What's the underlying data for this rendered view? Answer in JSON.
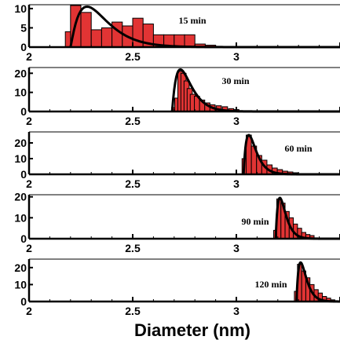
{
  "figure": {
    "xlabel": "Diameter (nm)",
    "colors": {
      "bar_fill": "#e23434",
      "bar_stroke": "#000000",
      "fit_line": "#000000"
    }
  },
  "chart_data": [
    {
      "type": "bar",
      "label": "15 min",
      "xlim": [
        2,
        3.5
      ],
      "ylim": [
        0,
        11
      ],
      "xticks": [
        "2",
        "2.5",
        "3"
      ],
      "yticks": [
        "0",
        "5",
        "10"
      ],
      "bin_width": 0.05,
      "bins": [
        [
          2.2,
          4
        ],
        [
          2.225,
          10.8
        ],
        [
          2.275,
          9
        ],
        [
          2.325,
          4.5
        ],
        [
          2.375,
          5
        ],
        [
          2.425,
          6.5
        ],
        [
          2.475,
          5.5
        ],
        [
          2.525,
          7.5
        ],
        [
          2.575,
          6
        ],
        [
          2.625,
          3.2
        ],
        [
          2.675,
          3.2
        ],
        [
          2.725,
          3.2
        ],
        [
          2.775,
          3.2
        ],
        [
          2.825,
          0.8
        ],
        [
          2.875,
          0.5
        ]
      ],
      "fit": {
        "mode": 2.28,
        "sigma": 0.3,
        "peak": 10.5,
        "start": 2.2
      }
    },
    {
      "type": "bar",
      "label": "30 min",
      "xlim": [
        2,
        3.5
      ],
      "ylim": [
        0,
        23
      ],
      "xticks": [
        "2",
        "2.5",
        "3"
      ],
      "yticks": [
        "0",
        "10",
        "20"
      ],
      "bin_width": 0.025,
      "bins": [
        [
          2.7,
          2
        ],
        [
          2.715,
          7
        ],
        [
          2.73,
          21
        ],
        [
          2.745,
          20
        ],
        [
          2.76,
          16
        ],
        [
          2.775,
          12
        ],
        [
          2.79,
          9
        ],
        [
          2.81,
          8
        ],
        [
          2.835,
          6
        ],
        [
          2.86,
          4.5
        ],
        [
          2.885,
          3.5
        ],
        [
          2.915,
          3
        ],
        [
          2.945,
          2.5
        ],
        [
          2.975,
          1.5
        ],
        [
          3.0,
          1
        ]
      ],
      "fit": {
        "mode": 2.73,
        "sigma": 0.19,
        "peak": 22,
        "start": 2.69
      }
    },
    {
      "type": "bar",
      "label": "60 min",
      "xlim": [
        2,
        3.5
      ],
      "ylim": [
        0,
        27
      ],
      "xticks": [
        "2",
        "2.5",
        "3"
      ],
      "yticks": [
        "0",
        "10",
        "20"
      ],
      "bin_width": 0.025,
      "bins": [
        [
          3.04,
          10
        ],
        [
          3.06,
          25
        ],
        [
          3.085,
          18
        ],
        [
          3.11,
          12
        ],
        [
          3.135,
          9
        ],
        [
          3.16,
          6
        ],
        [
          3.185,
          4
        ],
        [
          3.21,
          3
        ],
        [
          3.235,
          2
        ],
        [
          3.26,
          1.5
        ],
        [
          3.285,
          1
        ]
      ],
      "fit": {
        "mode": 3.06,
        "sigma": 0.18,
        "peak": 25,
        "start": 3.035
      }
    },
    {
      "type": "bar",
      "label": "90 min",
      "xlim": [
        2,
        3.5
      ],
      "ylim": [
        0,
        21
      ],
      "xticks": [
        "2",
        "2.5",
        "3"
      ],
      "yticks": [
        "0",
        "10",
        "20"
      ],
      "bin_width": 0.02,
      "bins": [
        [
          3.19,
          4
        ],
        [
          3.205,
          19
        ],
        [
          3.225,
          17
        ],
        [
          3.245,
          13
        ],
        [
          3.265,
          10
        ],
        [
          3.285,
          7
        ],
        [
          3.305,
          5
        ],
        [
          3.325,
          3
        ],
        [
          3.345,
          2
        ],
        [
          3.365,
          1.5
        ]
      ],
      "fit": {
        "mode": 3.21,
        "sigma": 0.14,
        "peak": 19.5,
        "start": 3.19
      }
    },
    {
      "type": "bar",
      "label": "120 min",
      "xlim": [
        2,
        3.5
      ],
      "ylim": [
        0,
        25
      ],
      "xticks": [
        "2",
        "2.5",
        "3"
      ],
      "yticks": [
        "0",
        "10",
        "20"
      ],
      "bin_width": 0.02,
      "bins": [
        [
          3.29,
          6
        ],
        [
          3.305,
          22
        ],
        [
          3.325,
          18
        ],
        [
          3.345,
          14
        ],
        [
          3.365,
          10
        ],
        [
          3.385,
          7
        ],
        [
          3.405,
          5
        ],
        [
          3.425,
          3
        ],
        [
          3.445,
          2
        ],
        [
          3.465,
          1
        ]
      ],
      "fit": {
        "mode": 3.31,
        "sigma": 0.12,
        "peak": 23,
        "start": 3.29
      }
    }
  ]
}
